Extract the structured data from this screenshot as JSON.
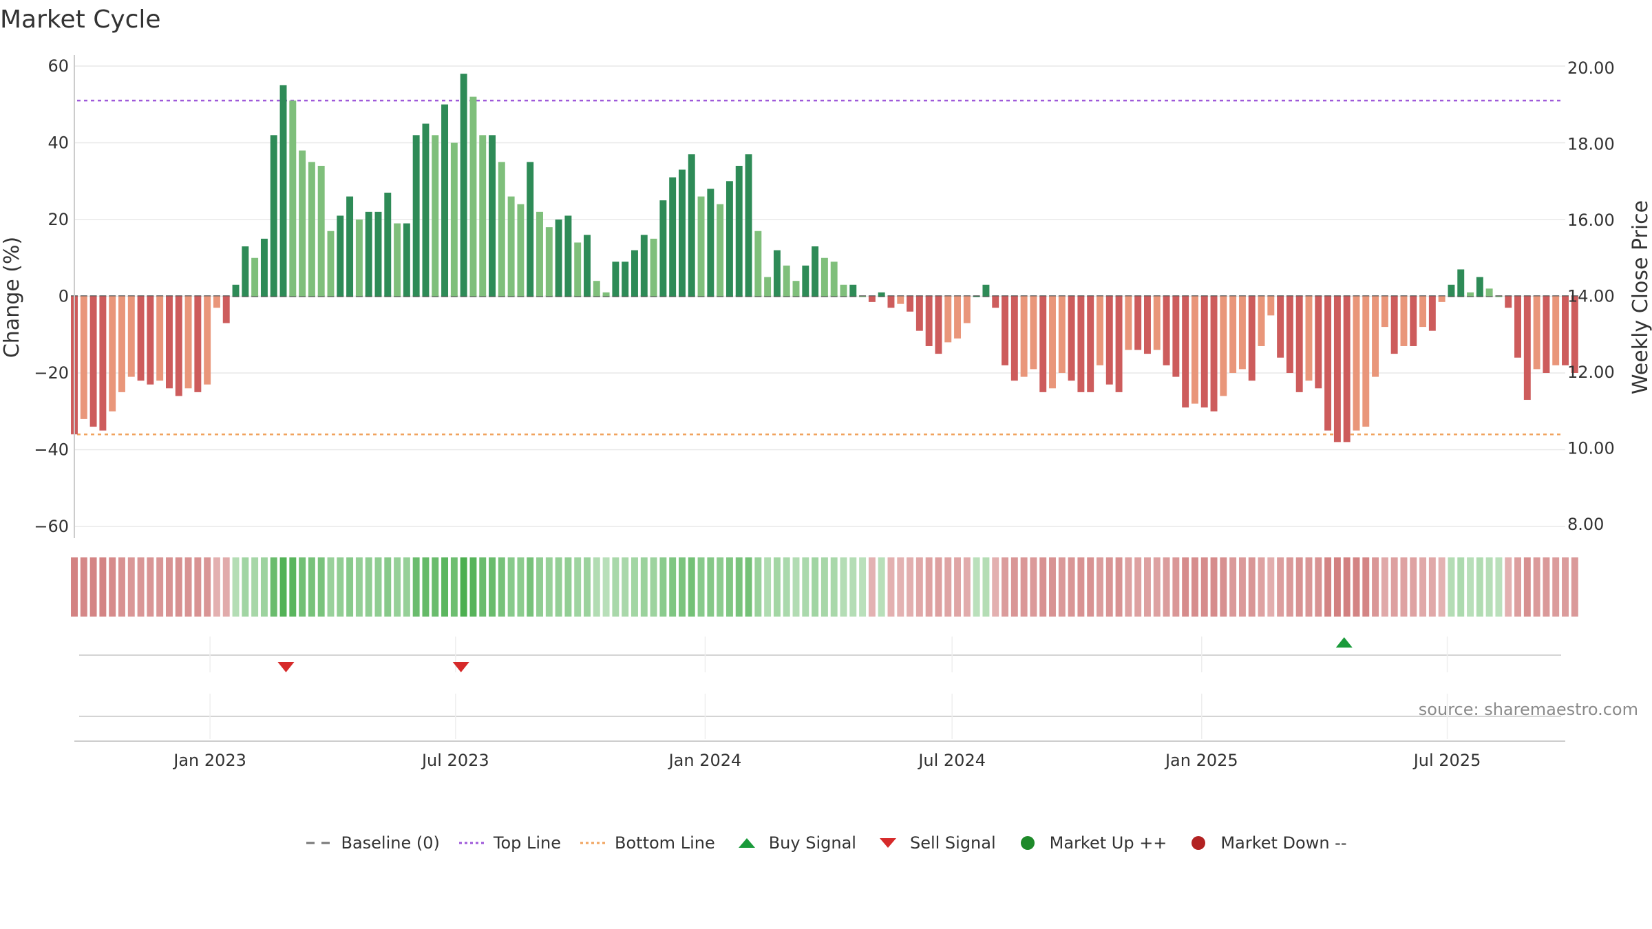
{
  "chart_data": {
    "type": "bar",
    "title": "Market Cycle",
    "ylabel": "Change (%)",
    "y2label": "Weekly Close Price",
    "ylim": [
      -60,
      60
    ],
    "yticks": [
      60,
      40,
      20,
      0,
      -20,
      -40,
      -60
    ],
    "yticklabels": [
      "60",
      "40",
      "20",
      "0",
      "−20",
      "−40",
      "−60"
    ],
    "y2lim": [
      7.95,
      20.05
    ],
    "y2ticks": [
      20,
      18,
      16,
      14,
      12,
      10,
      8
    ],
    "y2ticklabels": [
      "20.00",
      "18.00",
      "16.00",
      "14.00",
      "12.00",
      "10.00",
      "8.00"
    ],
    "top_line": 51,
    "bottom_line": -36,
    "x_start": "2022-09-23",
    "x_end": "2025-09-26",
    "xticks": [
      "2023-01-01",
      "2023-07-01",
      "2024-01-01",
      "2024-07-01",
      "2025-01-01",
      "2025-07-01"
    ],
    "xticklabels": [
      "Jan 2023",
      "Jul 2023",
      "Jan 2024",
      "Jul 2024",
      "Jan 2025",
      "Jul 2025"
    ],
    "first_week": "2022-09-23",
    "bar_values": [
      -36,
      -32,
      -34,
      -35,
      -30,
      -25,
      -21,
      -22,
      -23,
      -22,
      -24,
      -26,
      -24,
      -25,
      -23,
      -3,
      -7,
      3,
      13,
      10,
      15,
      42,
      55,
      51,
      38,
      35,
      34,
      17,
      21,
      26,
      20,
      22,
      22,
      27,
      19,
      19,
      42,
      45,
      42,
      50,
      40,
      58,
      52,
      42,
      42,
      35,
      26,
      24,
      35,
      22,
      18,
      20,
      21,
      14,
      16,
      4,
      1,
      9,
      9,
      12,
      16,
      15,
      25,
      31,
      33,
      37,
      26,
      28,
      24,
      30,
      34,
      37,
      17,
      5,
      12,
      8,
      4,
      8,
      13,
      10,
      9,
      3,
      3,
      0,
      -1.5,
      1,
      -3,
      -2,
      -4,
      -9,
      -13,
      -15,
      -12,
      -11,
      -7,
      0,
      3,
      -3,
      -18,
      -22,
      -21,
      -19,
      -25,
      -24,
      -20,
      -22,
      -25,
      -25,
      -18,
      -23,
      -25,
      -14,
      -14,
      -15,
      -14,
      -18,
      -21,
      -29,
      -28,
      -29,
      -30,
      -26,
      -20,
      -19,
      -22,
      -13,
      -5,
      -16,
      -20,
      -25,
      -22,
      -24,
      -35,
      -38,
      -38,
      -35,
      -34,
      -21,
      -8,
      -15,
      -13,
      -13,
      -8,
      -9,
      -1.5,
      3,
      7,
      1,
      5,
      2,
      0,
      -3,
      -16,
      -27,
      -19,
      -20,
      -18,
      -18,
      -20
    ],
    "price_series": [],
    "sell_signals": [
      "2023-02-26",
      "2023-07-05"
    ],
    "buy_signals": [
      "2025-04-16"
    ],
    "source": "source: sharemaestro.com",
    "legend": [
      {
        "label": "Baseline (0)",
        "icon": "dash-gray-line",
        "color": "#777777"
      },
      {
        "label": "Top Line",
        "icon": "dotted-purple-line",
        "color": "#9e59d9"
      },
      {
        "label": "Bottom Line",
        "icon": "dotted-orange-line",
        "color": "#f0a35e"
      },
      {
        "label": "Buy Signal",
        "icon": "triangle-up-green",
        "color": "#1a9a3a"
      },
      {
        "label": "Sell Signal",
        "icon": "triangle-down-red",
        "color": "#d62a2a"
      },
      {
        "label": "Market Up ++",
        "icon": "circle-green",
        "color": "#1e8a2a"
      },
      {
        "label": "Market Down --",
        "icon": "circle-red",
        "color": "#b22222"
      }
    ],
    "colors": {
      "up_dark": "#2e8b57",
      "up_light": "#7fbf7b",
      "down_dark": "#cd5c5c",
      "down_light": "#e9967a",
      "top_line": "#9e59d9",
      "bottom_line": "#f0a35e",
      "sell": "#d62a2a",
      "buy": "#1a9a3a",
      "grid": "#e8e8e8",
      "axis": "#cccccc"
    }
  }
}
